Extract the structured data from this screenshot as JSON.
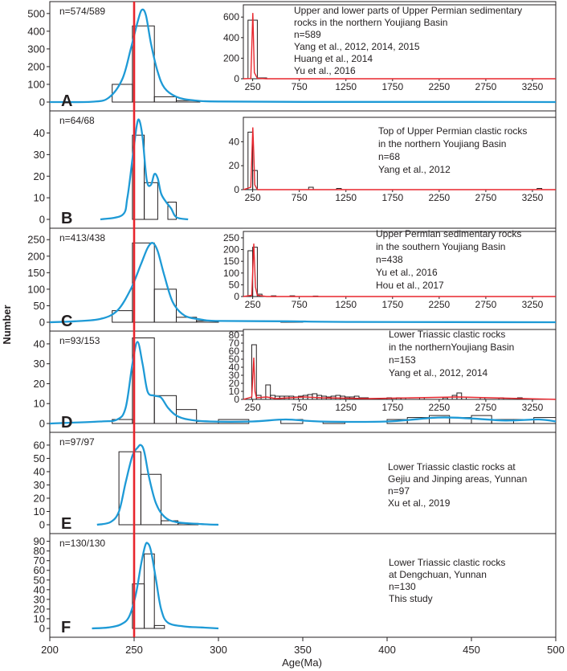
{
  "figure": {
    "ylabel": "Number",
    "xlabel": "Age(Ma)",
    "x_ticks": [
      200,
      250,
      300,
      350,
      400,
      450,
      500
    ],
    "xlim": [
      200,
      500
    ],
    "reference_line_age": 250,
    "colors": {
      "kde": "#1e9ad6",
      "reference": "#e8262d",
      "bars": "#231f20",
      "inset_kde": "#e8262d"
    }
  },
  "chart_data": [
    {
      "type": "bar",
      "panel": "A",
      "count_label": "n=574/589",
      "ylim": [
        0,
        540
      ],
      "yticks": [
        0,
        100,
        200,
        300,
        400,
        500
      ],
      "bins": [
        {
          "x0": 237,
          "x1": 249,
          "v": 100
        },
        {
          "x0": 249,
          "x1": 262,
          "v": 430
        },
        {
          "x0": 262,
          "x1": 275,
          "v": 30
        },
        {
          "x0": 275,
          "x1": 289,
          "v": 8
        }
      ],
      "kde": [
        [
          200,
          0
        ],
        [
          225,
          2
        ],
        [
          235,
          25
        ],
        [
          243,
          130
        ],
        [
          248,
          300
        ],
        [
          252,
          450
        ],
        [
          254.5,
          520
        ],
        [
          257,
          490
        ],
        [
          260,
          330
        ],
        [
          264,
          170
        ],
        [
          268,
          80
        ],
        [
          275,
          30
        ],
        [
          285,
          10
        ],
        [
          300,
          3
        ],
        [
          350,
          1
        ],
        [
          450,
          1
        ],
        [
          500,
          0
        ]
      ],
      "inset": {
        "description": [
          "Upper and lower parts of Upper Permian sedimentary",
          "rocks in the northern Youjiang Basin",
          "n=589",
          "Yang et al., 2012, 2014, 2015",
          "Huang et al., 2014",
          "Yu et al., 2016"
        ],
        "ylim": [
          0,
          680
        ],
        "yticks": [
          0,
          200,
          400,
          600
        ],
        "bins": [
          {
            "x0": 200,
            "x1": 300,
            "v": 570
          },
          {
            "x0": 300,
            "x1": 400,
            "v": 8
          }
        ],
        "kde": [
          [
            150,
            0
          ],
          [
            230,
            2
          ],
          [
            252,
            640
          ],
          [
            268,
            60
          ],
          [
            300,
            4
          ],
          [
            400,
            0
          ],
          [
            3500,
            0
          ]
        ]
      }
    },
    {
      "type": "bar",
      "panel": "B",
      "count_label": "n=64/68",
      "ylim": [
        0,
        48
      ],
      "yticks": [
        0,
        10,
        20,
        30,
        40
      ],
      "bins": [
        {
          "x0": 249,
          "x1": 256,
          "v": 39
        },
        {
          "x0": 256,
          "x1": 264,
          "v": 17
        },
        {
          "x0": 264,
          "x1": 270,
          "v": 0
        },
        {
          "x0": 270,
          "x1": 275,
          "v": 8
        }
      ],
      "kde": [
        [
          230,
          0
        ],
        [
          243,
          2
        ],
        [
          246,
          10
        ],
        [
          249,
          28
        ],
        [
          251.5,
          43
        ],
        [
          253,
          46
        ],
        [
          255,
          38
        ],
        [
          257.5,
          18
        ],
        [
          260,
          16
        ],
        [
          262,
          21
        ],
        [
          264,
          19
        ],
        [
          266,
          12
        ],
        [
          269,
          8
        ],
        [
          272,
          5
        ],
        [
          275,
          1
        ],
        [
          282,
          0
        ]
      ],
      "inset": {
        "description": [
          "Top of Upper Permian clastic rocks",
          "in the northern Youjiang Basin",
          "n=68",
          "Yang et al., 2012"
        ],
        "ylim": [
          0,
          57
        ],
        "yticks": [
          0,
          20,
          40
        ],
        "bins": [
          {
            "x0": 200,
            "x1": 250,
            "v": 48
          },
          {
            "x0": 250,
            "x1": 300,
            "v": 16
          },
          {
            "x0": 850,
            "x1": 900,
            "v": 2
          },
          {
            "x0": 1150,
            "x1": 1200,
            "v": 1
          },
          {
            "x0": 3300,
            "x1": 3350,
            "v": 1
          }
        ],
        "kde": [
          [
            150,
            0
          ],
          [
            230,
            2
          ],
          [
            252,
            52
          ],
          [
            262,
            30
          ],
          [
            272,
            4
          ],
          [
            300,
            0
          ],
          [
            3500,
            0
          ]
        ]
      }
    },
    {
      "type": "bar",
      "panel": "C",
      "count_label": "n=413/438",
      "ylim": [
        0,
        270
      ],
      "yticks": [
        0,
        50,
        100,
        150,
        200,
        250
      ],
      "bins": [
        {
          "x0": 237,
          "x1": 249,
          "v": 35
        },
        {
          "x0": 249,
          "x1": 262,
          "v": 240
        },
        {
          "x0": 262,
          "x1": 275,
          "v": 100
        },
        {
          "x0": 275,
          "x1": 287,
          "v": 15
        },
        {
          "x0": 287,
          "x1": 300,
          "v": 4
        },
        {
          "x0": 337,
          "x1": 350,
          "v": 3
        }
      ],
      "kde": [
        [
          200,
          0
        ],
        [
          215,
          3
        ],
        [
          230,
          10
        ],
        [
          240,
          35
        ],
        [
          248,
          100
        ],
        [
          254,
          175
        ],
        [
          258,
          225
        ],
        [
          261,
          240
        ],
        [
          264,
          215
        ],
        [
          268,
          140
        ],
        [
          273,
          60
        ],
        [
          280,
          20
        ],
        [
          290,
          8
        ],
        [
          300,
          4
        ],
        [
          340,
          3
        ],
        [
          380,
          1
        ],
        [
          500,
          0
        ]
      ],
      "inset": {
        "description": [
          "Upper Permian sedimentary rocks",
          "in the southern Youjiang Basin",
          "n=438",
          "Yu et al., 2016",
          "Hou et al., 2017"
        ],
        "ylim": [
          0,
          260
        ],
        "yticks": [
          0,
          50,
          100,
          150,
          200,
          250
        ],
        "bins": [
          {
            "x0": 200,
            "x1": 250,
            "v": 195
          },
          {
            "x0": 250,
            "x1": 300,
            "v": 210
          },
          {
            "x0": 300,
            "x1": 350,
            "v": 10
          },
          {
            "x0": 450,
            "x1": 500,
            "v": 3
          },
          {
            "x0": 650,
            "x1": 700,
            "v": 3
          },
          {
            "x0": 900,
            "x1": 950,
            "v": 2
          }
        ],
        "kde": [
          [
            150,
            0
          ],
          [
            240,
            5
          ],
          [
            262,
            225
          ],
          [
            280,
            40
          ],
          [
            300,
            5
          ],
          [
            400,
            0
          ],
          [
            3500,
            0
          ]
        ]
      }
    },
    {
      "type": "bar",
      "panel": "D",
      "count_label": "n=93/153",
      "ylim": [
        0,
        44
      ],
      "yticks": [
        0,
        10,
        20,
        30,
        40
      ],
      "bins": [
        {
          "x0": 237,
          "x1": 249,
          "v": 2
        },
        {
          "x0": 249,
          "x1": 262,
          "v": 43
        },
        {
          "x0": 262,
          "x1": 275,
          "v": 14
        },
        {
          "x0": 275,
          "x1": 287,
          "v": 7
        },
        {
          "x0": 287,
          "x1": 300,
          "v": 1
        },
        {
          "x0": 300,
          "x1": 318,
          "v": 2
        },
        {
          "x0": 337,
          "x1": 350,
          "v": 2
        },
        {
          "x0": 362,
          "x1": 375,
          "v": 1
        },
        {
          "x0": 400,
          "x1": 412,
          "v": 2
        },
        {
          "x0": 412,
          "x1": 425,
          "v": 3
        },
        {
          "x0": 425,
          "x1": 437,
          "v": 4
        },
        {
          "x0": 437,
          "x1": 450,
          "v": 3
        },
        {
          "x0": 450,
          "x1": 462,
          "v": 4
        },
        {
          "x0": 462,
          "x1": 475,
          "v": 2
        },
        {
          "x0": 475,
          "x1": 487,
          "v": 2
        },
        {
          "x0": 487,
          "x1": 500,
          "v": 3
        }
      ],
      "kde": [
        [
          200,
          0
        ],
        [
          230,
          1
        ],
        [
          240,
          2
        ],
        [
          245,
          8
        ],
        [
          249,
          30
        ],
        [
          252,
          41
        ],
        [
          255,
          30
        ],
        [
          258,
          16
        ],
        [
          262,
          14
        ],
        [
          266,
          13
        ],
        [
          270,
          8
        ],
        [
          275,
          4
        ],
        [
          282,
          2
        ],
        [
          295,
          1
        ],
        [
          320,
          1
        ],
        [
          340,
          2
        ],
        [
          360,
          1
        ],
        [
          400,
          1
        ],
        [
          430,
          3
        ],
        [
          450,
          2.5
        ],
        [
          470,
          1.5
        ],
        [
          490,
          2
        ],
        [
          500,
          1
        ]
      ],
      "inset": {
        "description": [
          "Lower Triassic clastic rocks",
          "in the northernYoujiang Basin",
          "n=153",
          "Yang et al., 2012, 2014"
        ],
        "ylim": [
          0,
          82
        ],
        "yticks": [
          0,
          10,
          20,
          30,
          40,
          50,
          60,
          70,
          80
        ],
        "bins": [
          {
            "x0": 240,
            "x1": 290,
            "v": 68
          },
          {
            "x0": 290,
            "x1": 340,
            "v": 5
          },
          {
            "x0": 390,
            "x1": 440,
            "v": 18
          },
          {
            "x0": 440,
            "x1": 490,
            "v": 5
          },
          {
            "x0": 490,
            "x1": 540,
            "v": 4
          },
          {
            "x0": 540,
            "x1": 590,
            "v": 4
          },
          {
            "x0": 590,
            "x1": 640,
            "v": 4
          },
          {
            "x0": 640,
            "x1": 690,
            "v": 4
          },
          {
            "x0": 690,
            "x1": 740,
            "v": 3
          },
          {
            "x0": 740,
            "x1": 790,
            "v": 4
          },
          {
            "x0": 790,
            "x1": 840,
            "v": 5
          },
          {
            "x0": 840,
            "x1": 890,
            "v": 6
          },
          {
            "x0": 890,
            "x1": 940,
            "v": 7
          },
          {
            "x0": 940,
            "x1": 990,
            "v": 5
          },
          {
            "x0": 990,
            "x1": 1040,
            "v": 4
          },
          {
            "x0": 1040,
            "x1": 1090,
            "v": 3
          },
          {
            "x0": 1090,
            "x1": 1140,
            "v": 4
          },
          {
            "x0": 1140,
            "x1": 1190,
            "v": 5
          },
          {
            "x0": 1190,
            "x1": 1240,
            "v": 4
          },
          {
            "x0": 1240,
            "x1": 1290,
            "v": 3
          },
          {
            "x0": 1290,
            "x1": 1340,
            "v": 3
          },
          {
            "x0": 1340,
            "x1": 1390,
            "v": 4
          },
          {
            "x0": 1390,
            "x1": 1440,
            "v": 2
          },
          {
            "x0": 1440,
            "x1": 1490,
            "v": 2
          },
          {
            "x0": 1690,
            "x1": 1740,
            "v": 2
          },
          {
            "x0": 1790,
            "x1": 1840,
            "v": 2
          },
          {
            "x0": 1840,
            "x1": 1890,
            "v": 2
          },
          {
            "x0": 2040,
            "x1": 2090,
            "v": 2
          },
          {
            "x0": 2290,
            "x1": 2340,
            "v": 2
          },
          {
            "x0": 2390,
            "x1": 2440,
            "v": 5
          },
          {
            "x0": 2440,
            "x1": 2490,
            "v": 8
          },
          {
            "x0": 2490,
            "x1": 2540,
            "v": 3
          },
          {
            "x0": 2690,
            "x1": 2740,
            "v": 2
          },
          {
            "x0": 2890,
            "x1": 2940,
            "v": 2
          },
          {
            "x0": 3090,
            "x1": 3140,
            "v": 2
          }
        ],
        "kde": [
          [
            150,
            0
          ],
          [
            240,
            3
          ],
          [
            262,
            52
          ],
          [
            275,
            10
          ],
          [
            290,
            2
          ],
          [
            400,
            3
          ],
          [
            500,
            1
          ],
          [
            800,
            3
          ],
          [
            1000,
            2
          ],
          [
            1500,
            1
          ],
          [
            2450,
            3
          ],
          [
            3500,
            0
          ]
        ]
      }
    },
    {
      "type": "bar",
      "panel": "E",
      "count_label": "n=97/97",
      "ylim": [
        0,
        66
      ],
      "yticks": [
        0,
        10,
        20,
        30,
        40,
        50,
        60
      ],
      "bins": [
        {
          "x0": 241,
          "x1": 254,
          "v": 55
        },
        {
          "x0": 254,
          "x1": 266,
          "v": 38
        },
        {
          "x0": 266,
          "x1": 276,
          "v": 3
        },
        {
          "x0": 276,
          "x1": 288,
          "v": 1
        }
      ],
      "kde": [
        [
          228,
          0
        ],
        [
          236,
          2
        ],
        [
          241,
          10
        ],
        [
          245,
          32
        ],
        [
          249,
          52
        ],
        [
          252,
          58
        ],
        [
          254,
          60
        ],
        [
          256,
          55
        ],
        [
          259,
          35
        ],
        [
          263,
          16
        ],
        [
          268,
          6
        ],
        [
          275,
          2
        ],
        [
          290,
          0.5
        ],
        [
          300,
          0
        ]
      ],
      "inset": {
        "description": [
          "Lower Triassic clastic rocks at",
          "Gejiu and Jinping areas, Yunnan",
          "n=97",
          "Xu et al., 2019"
        ]
      }
    },
    {
      "type": "bar",
      "panel": "F",
      "count_label": "n=130/130",
      "ylim": [
        0,
        93
      ],
      "yticks": [
        0,
        10,
        20,
        30,
        40,
        50,
        60,
        70,
        80,
        90
      ],
      "bins": [
        {
          "x0": 249,
          "x1": 256,
          "v": 46
        },
        {
          "x0": 256,
          "x1": 262,
          "v": 77
        },
        {
          "x0": 262,
          "x1": 268,
          "v": 3
        }
      ],
      "kde": [
        [
          225,
          0
        ],
        [
          235,
          1
        ],
        [
          242,
          4
        ],
        [
          247,
          12
        ],
        [
          251,
          35
        ],
        [
          254,
          65
        ],
        [
          256.5,
          85
        ],
        [
          258,
          88
        ],
        [
          260,
          80
        ],
        [
          263,
          50
        ],
        [
          266,
          20
        ],
        [
          270,
          6
        ],
        [
          280,
          2
        ],
        [
          290,
          1
        ],
        [
          300,
          0
        ]
      ],
      "inset": {
        "description": [
          "Lower Triassic clastic rocks",
          "at Dengchuan, Yunnan",
          "n=130",
          "This study"
        ]
      }
    }
  ]
}
